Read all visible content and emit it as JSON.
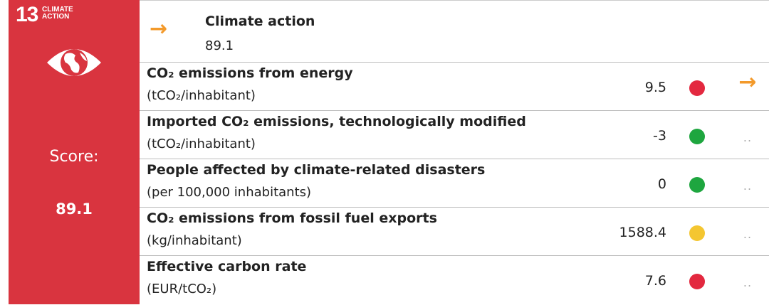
{
  "goal": {
    "number": "13",
    "name": "CLIMATE ACTION",
    "score_label": "Score:",
    "score": 89.1
  },
  "header": {
    "trend": "→",
    "title": "Climate action",
    "value": 89.1
  },
  "rows": [
    {
      "name": "CO₂ emissions from energy",
      "unit": "(tCO₂/inhabitant)",
      "value": 9.5,
      "status_color": "#e3283f",
      "trend": "→"
    },
    {
      "name": "Imported CO₂ emissions, technologically modified",
      "unit": "(tCO₂/inhabitant)",
      "value": -3,
      "status_color": "#1ea63f",
      "trend": ".."
    },
    {
      "name": "People affected by climate-related disasters",
      "unit": "(per 100,000 inhabitants)",
      "value": 0,
      "status_color": "#1ea63f",
      "trend": ".."
    },
    {
      "name": "CO₂ emissions from fossil fuel exports",
      "unit": "(kg/inhabitant)",
      "value": 1588.4,
      "status_color": "#f4c631",
      "trend": ".."
    },
    {
      "name": "Effective carbon rate",
      "unit": "(EUR/tCO₂)",
      "value": 7.6,
      "status_color": "#e3283f",
      "trend": ".."
    }
  ]
}
